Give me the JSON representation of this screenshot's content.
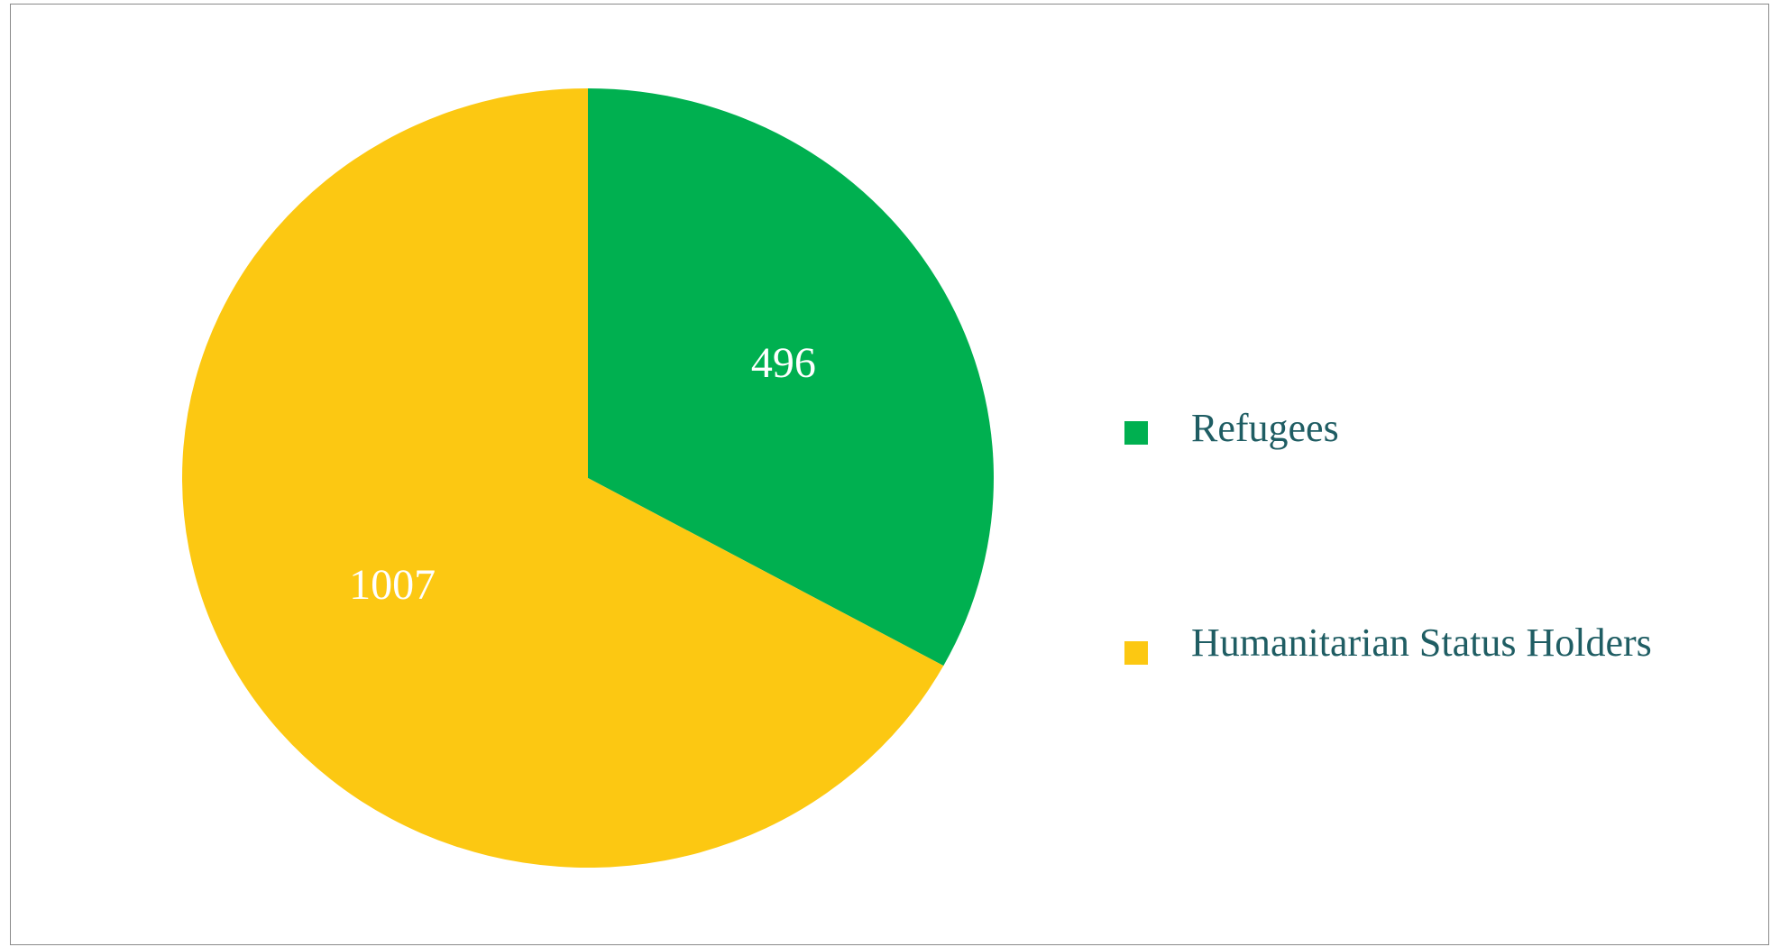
{
  "chart_data": {
    "type": "pie",
    "title": "",
    "slices": [
      {
        "label": "Refugees",
        "value": 496,
        "color": "#00b050"
      },
      {
        "label": "Humanitarian Status Holders",
        "value": 1007,
        "color": "#fcc812"
      }
    ],
    "start_angle": "12 o'clock",
    "direction": "clockwise",
    "legend": {
      "position": "right"
    },
    "data_labels": "values, inside slices, white"
  }
}
